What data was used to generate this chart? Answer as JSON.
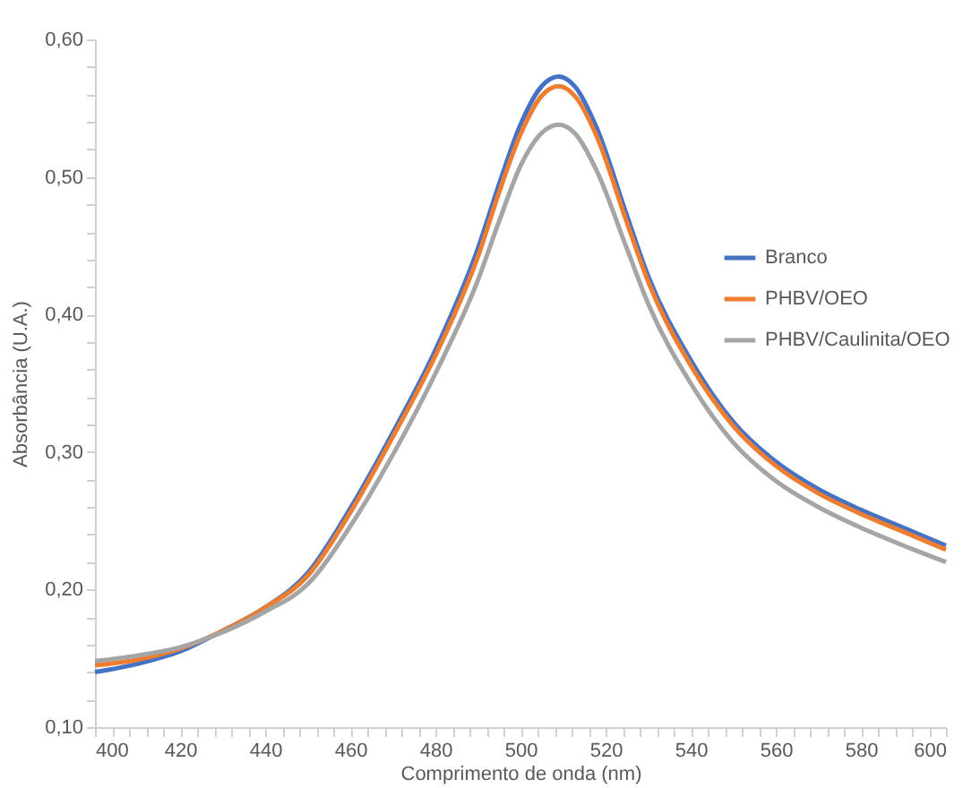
{
  "chart_data": {
    "type": "line",
    "xlabel": "Comprimento de onda (nm)",
    "ylabel": "Absorbância (U.A.)",
    "x": [
      400,
      410,
      420,
      430,
      440,
      450,
      460,
      470,
      480,
      490,
      495,
      500,
      505,
      509,
      513,
      518,
      525,
      530,
      540,
      550,
      560,
      570,
      580,
      590,
      600
    ],
    "series": [
      {
        "name": "Branco",
        "color": "#4472c4",
        "values": [
          0.14,
          0.146,
          0.155,
          0.17,
          0.187,
          0.212,
          0.259,
          0.314,
          0.374,
          0.448,
          0.495,
          0.538,
          0.566,
          0.573,
          0.565,
          0.535,
          0.472,
          0.428,
          0.367,
          0.322,
          0.293,
          0.273,
          0.258,
          0.245,
          0.232
        ]
      },
      {
        "name": "PHBV/OEO",
        "color": "#ed7d31",
        "values": [
          0.145,
          0.149,
          0.157,
          0.17,
          0.187,
          0.21,
          0.256,
          0.311,
          0.37,
          0.442,
          0.489,
          0.531,
          0.559,
          0.566,
          0.558,
          0.529,
          0.467,
          0.424,
          0.363,
          0.319,
          0.29,
          0.27,
          0.255,
          0.242,
          0.229
        ]
      },
      {
        "name": "PHBV/Caulinita/OEO",
        "color": "#a5a5a5",
        "values": [
          0.148,
          0.152,
          0.158,
          0.169,
          0.184,
          0.204,
          0.246,
          0.298,
          0.357,
          0.425,
          0.468,
          0.508,
          0.532,
          0.538,
          0.531,
          0.504,
          0.448,
          0.408,
          0.35,
          0.307,
          0.279,
          0.26,
          0.245,
          0.232,
          0.22
        ]
      }
    ],
    "xlim": [
      400,
      600
    ],
    "xticks": [
      400,
      {
        "value": 404,
        "label": null
      },
      {
        "value": 408,
        "label": null
      },
      {
        "value": 412,
        "label": null
      },
      {
        "value": 416,
        "label": null
      },
      420,
      {
        "value": 424,
        "label": null
      },
      {
        "value": 428,
        "label": null
      },
      {
        "value": 432,
        "label": null
      },
      {
        "value": 436,
        "label": null
      },
      440,
      {
        "value": 444,
        "label": null
      },
      {
        "value": 448,
        "label": null
      },
      {
        "value": 452,
        "label": null
      },
      {
        "value": 456,
        "label": null
      },
      460,
      {
        "value": 464,
        "label": null
      },
      {
        "value": 468,
        "label": null
      },
      {
        "value": 472,
        "label": null
      },
      {
        "value": 476,
        "label": null
      },
      480,
      {
        "value": 484,
        "label": null
      },
      {
        "value": 488,
        "label": null
      },
      {
        "value": 492,
        "label": null
      },
      {
        "value": 496,
        "label": null
      },
      500,
      {
        "value": 504,
        "label": null
      },
      {
        "value": 508,
        "label": null
      },
      {
        "value": 512,
        "label": null
      },
      {
        "value": 516,
        "label": null
      },
      520,
      {
        "value": 524,
        "label": null
      },
      {
        "value": 528,
        "label": null
      },
      {
        "value": 532,
        "label": null
      },
      {
        "value": 536,
        "label": null
      },
      540,
      {
        "value": 544,
        "label": null
      },
      {
        "value": 548,
        "label": null
      },
      {
        "value": 552,
        "label": null
      },
      {
        "value": 556,
        "label": null
      },
      560,
      {
        "value": 564,
        "label": null
      },
      {
        "value": 568,
        "label": null
      },
      {
        "value": 572,
        "label": null
      },
      {
        "value": 576,
        "label": null
      },
      580,
      {
        "value": 584,
        "label": null
      },
      {
        "value": 588,
        "label": null
      },
      {
        "value": 592,
        "label": null
      },
      {
        "value": 596,
        "label": null
      },
      600
    ],
    "ylim": [
      0.1,
      0.6
    ],
    "yticks": [
      {
        "value": 0.1,
        "label": "0,10"
      },
      {
        "value": 0.12,
        "label": null
      },
      {
        "value": 0.14,
        "label": null
      },
      {
        "value": 0.16,
        "label": null
      },
      {
        "value": 0.18,
        "label": null
      },
      {
        "value": 0.2,
        "label": "0,20"
      },
      {
        "value": 0.22,
        "label": null
      },
      {
        "value": 0.24,
        "label": null
      },
      {
        "value": 0.26,
        "label": null
      },
      {
        "value": 0.28,
        "label": null
      },
      {
        "value": 0.3,
        "label": "0,30"
      },
      {
        "value": 0.32,
        "label": null
      },
      {
        "value": 0.34,
        "label": null
      },
      {
        "value": 0.36,
        "label": null
      },
      {
        "value": 0.38,
        "label": null
      },
      {
        "value": 0.4,
        "label": "0,40"
      },
      {
        "value": 0.42,
        "label": null
      },
      {
        "value": 0.44,
        "label": null
      },
      {
        "value": 0.46,
        "label": null
      },
      {
        "value": 0.48,
        "label": null
      },
      {
        "value": 0.5,
        "label": "0,50"
      },
      {
        "value": 0.52,
        "label": null
      },
      {
        "value": 0.54,
        "label": null
      },
      {
        "value": 0.56,
        "label": null
      },
      {
        "value": 0.58,
        "label": null
      },
      {
        "value": 0.6,
        "label": "0,60"
      }
    ],
    "grid": false,
    "legend": "right",
    "marker": "none",
    "line_style": "solid"
  }
}
